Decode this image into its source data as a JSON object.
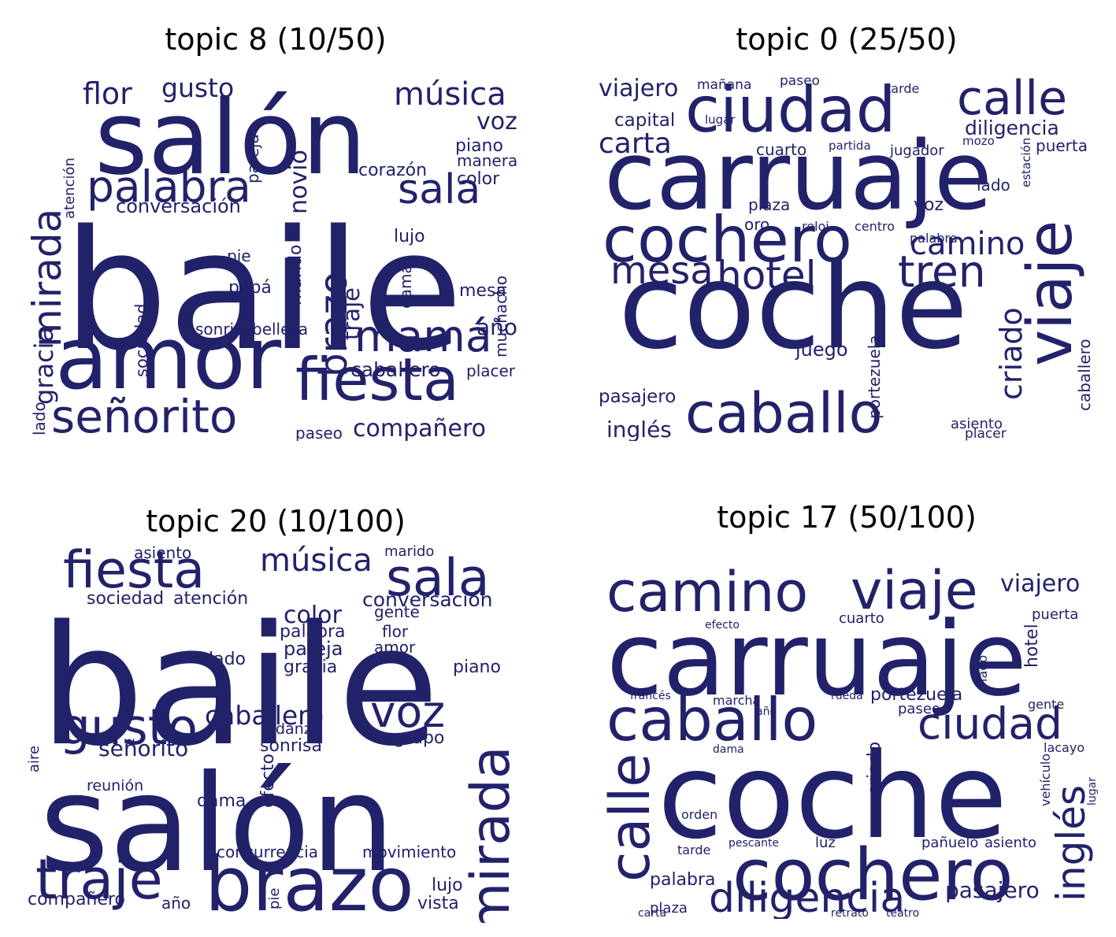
{
  "word_color": "#22226b",
  "chart_data": [
    {
      "type": "wordcloud",
      "title": "topic 8 (10/50)",
      "words": [
        {
          "text": "baile",
          "weight": 1.0
        },
        {
          "text": "salón",
          "weight": 0.85
        },
        {
          "text": "amor",
          "weight": 0.7
        },
        {
          "text": "fiesta",
          "weight": 0.47
        },
        {
          "text": "señorito",
          "weight": 0.38
        },
        {
          "text": "mamá",
          "weight": 0.36
        },
        {
          "text": "palabra",
          "weight": 0.35
        },
        {
          "text": "sala",
          "weight": 0.34
        },
        {
          "text": "mirada",
          "weight": 0.33
        },
        {
          "text": "música",
          "weight": 0.3
        },
        {
          "text": "flor",
          "weight": 0.26
        },
        {
          "text": "gusto",
          "weight": 0.23
        },
        {
          "text": "compañero",
          "weight": 0.22
        },
        {
          "text": "brazo",
          "weight": 0.22
        },
        {
          "text": "voz",
          "weight": 0.2
        },
        {
          "text": "gracia",
          "weight": 0.19
        },
        {
          "text": "novio",
          "weight": 0.19
        },
        {
          "text": "año",
          "weight": 0.18
        },
        {
          "text": "traje",
          "weight": 0.18
        },
        {
          "text": "caballero",
          "weight": 0.15
        },
        {
          "text": "conversación",
          "weight": 0.15
        },
        {
          "text": "corazón",
          "weight": 0.14
        },
        {
          "text": "sonrisa",
          "weight": 0.14
        },
        {
          "text": "belleza",
          "weight": 0.14
        },
        {
          "text": "piano",
          "weight": 0.14
        },
        {
          "text": "manera",
          "weight": 0.13
        },
        {
          "text": "color",
          "weight": 0.13
        },
        {
          "text": "lujo",
          "weight": 0.13
        },
        {
          "text": "pie",
          "weight": 0.13
        },
        {
          "text": "papá",
          "weight": 0.13
        },
        {
          "text": "mesa",
          "weight": 0.13
        },
        {
          "text": "placer",
          "weight": 0.13
        },
        {
          "text": "marido",
          "weight": 0.13
        },
        {
          "text": "sociedad",
          "weight": 0.12
        },
        {
          "text": "muchacho",
          "weight": 0.12
        },
        {
          "text": "paseo",
          "weight": 0.12
        },
        {
          "text": "pareja",
          "weight": 0.12
        },
        {
          "text": "dama",
          "weight": 0.12
        },
        {
          "text": "atención",
          "weight": 0.11
        },
        {
          "text": "lado",
          "weight": 0.11
        }
      ]
    },
    {
      "type": "wordcloud",
      "title": "topic 0 (25/50)",
      "words": [
        {
          "text": "coche",
          "weight": 1.0
        },
        {
          "text": "carruaje",
          "weight": 0.85
        },
        {
          "text": "ciudad",
          "weight": 0.6
        },
        {
          "text": "cochero",
          "weight": 0.58
        },
        {
          "text": "caballo",
          "weight": 0.58
        },
        {
          "text": "viaje",
          "weight": 0.55
        },
        {
          "text": "calle",
          "weight": 0.45
        },
        {
          "text": "tren",
          "weight": 0.4
        },
        {
          "text": "hotel",
          "weight": 0.37
        },
        {
          "text": "mesa",
          "weight": 0.35
        },
        {
          "text": "camino",
          "weight": 0.3
        },
        {
          "text": "carta",
          "weight": 0.28
        },
        {
          "text": "criado",
          "weight": 0.24
        },
        {
          "text": "viajero",
          "weight": 0.22
        },
        {
          "text": "diligencia",
          "weight": 0.19
        },
        {
          "text": "inglés",
          "weight": 0.19
        },
        {
          "text": "juego",
          "weight": 0.18
        },
        {
          "text": "capital",
          "weight": 0.17
        },
        {
          "text": "pasajero",
          "weight": 0.16
        },
        {
          "text": "cuarto",
          "weight": 0.15
        },
        {
          "text": "voz",
          "weight": 0.15
        },
        {
          "text": "portezuela",
          "weight": 0.14
        },
        {
          "text": "caballero",
          "weight": 0.14
        },
        {
          "text": "plaza",
          "weight": 0.14
        },
        {
          "text": "lado",
          "weight": 0.14
        },
        {
          "text": "oro",
          "weight": 0.14
        },
        {
          "text": "puerta",
          "weight": 0.13
        },
        {
          "text": "asiento",
          "weight": 0.13
        },
        {
          "text": "placer",
          "weight": 0.13
        },
        {
          "text": "jugador",
          "weight": 0.13
        },
        {
          "text": "paseo",
          "weight": 0.13
        },
        {
          "text": "mañana",
          "weight": 0.12
        },
        {
          "text": "tarde",
          "weight": 0.12
        },
        {
          "text": "palabra",
          "weight": 0.12
        },
        {
          "text": "reloj",
          "weight": 0.12
        },
        {
          "text": "centro",
          "weight": 0.12
        },
        {
          "text": "lugar",
          "weight": 0.11
        },
        {
          "text": "partida",
          "weight": 0.11
        },
        {
          "text": "mozo",
          "weight": 0.11
        },
        {
          "text": "estación",
          "weight": 0.11
        }
      ]
    },
    {
      "type": "wordcloud",
      "title": "topic 20 (10/100)",
      "words": [
        {
          "text": "baile",
          "weight": 1.0
        },
        {
          "text": "salón",
          "weight": 0.9
        },
        {
          "text": "brazo",
          "weight": 0.58
        },
        {
          "text": "traje",
          "weight": 0.45
        },
        {
          "text": "fiesta",
          "weight": 0.44
        },
        {
          "text": "sala",
          "weight": 0.44
        },
        {
          "text": "mirada",
          "weight": 0.43
        },
        {
          "text": "gusto",
          "weight": 0.4
        },
        {
          "text": "voz",
          "weight": 0.37
        },
        {
          "text": "música",
          "weight": 0.3
        },
        {
          "text": "caballero",
          "weight": 0.26
        },
        {
          "text": "señorito",
          "weight": 0.22
        },
        {
          "text": "color",
          "weight": 0.21
        },
        {
          "text": "conversación",
          "weight": 0.19
        },
        {
          "text": "pareja",
          "weight": 0.18
        },
        {
          "text": "sociedad",
          "weight": 0.17
        },
        {
          "text": "atención",
          "weight": 0.17
        },
        {
          "text": "palabra",
          "weight": 0.17
        },
        {
          "text": "gracia",
          "weight": 0.17
        },
        {
          "text": "piano",
          "weight": 0.17
        },
        {
          "text": "lado",
          "weight": 0.17
        },
        {
          "text": "amor",
          "weight": 0.16
        },
        {
          "text": "flor",
          "weight": 0.16
        },
        {
          "text": "gente",
          "weight": 0.16
        },
        {
          "text": "grupo",
          "weight": 0.16
        },
        {
          "text": "sonrisa",
          "weight": 0.15
        },
        {
          "text": "dama",
          "weight": 0.16
        },
        {
          "text": "reunión",
          "weight": 0.15
        },
        {
          "text": "danza",
          "weight": 0.14
        },
        {
          "text": "efecto",
          "weight": 0.14
        },
        {
          "text": "concurrencia",
          "weight": 0.14
        },
        {
          "text": "movimiento",
          "weight": 0.14
        },
        {
          "text": "compañero",
          "weight": 0.15
        },
        {
          "text": "lujo",
          "weight": 0.15
        },
        {
          "text": "vista",
          "weight": 0.15
        },
        {
          "text": "año",
          "weight": 0.14
        },
        {
          "text": "asiento",
          "weight": 0.13
        },
        {
          "text": "marido",
          "weight": 0.13
        },
        {
          "text": "aire",
          "weight": 0.12
        },
        {
          "text": "pie",
          "weight": 0.12
        }
      ]
    },
    {
      "type": "wordcloud",
      "title": "topic 17 (50/100)",
      "words": [
        {
          "text": "coche",
          "weight": 1.0
        },
        {
          "text": "carruaje",
          "weight": 0.85
        },
        {
          "text": "cochero",
          "weight": 0.6
        },
        {
          "text": "caballo",
          "weight": 0.55
        },
        {
          "text": "calle",
          "weight": 0.52
        },
        {
          "text": "camino",
          "weight": 0.5
        },
        {
          "text": "viaje",
          "weight": 0.49
        },
        {
          "text": "ciudad",
          "weight": 0.47
        },
        {
          "text": "diligencia",
          "weight": 0.4
        },
        {
          "text": "inglés",
          "weight": 0.35
        },
        {
          "text": "viajero",
          "weight": 0.24
        },
        {
          "text": "pasajero",
          "weight": 0.23
        },
        {
          "text": "portezuela",
          "weight": 0.2
        },
        {
          "text": "criado",
          "weight": 0.19
        },
        {
          "text": "hotel",
          "weight": 0.18
        },
        {
          "text": "palabra",
          "weight": 0.18
        },
        {
          "text": "puerta",
          "weight": 0.16
        },
        {
          "text": "cuarto",
          "weight": 0.16
        },
        {
          "text": "paseo",
          "weight": 0.16
        },
        {
          "text": "pañuelo",
          "weight": 0.15
        },
        {
          "text": "asiento",
          "weight": 0.15
        },
        {
          "text": "plaza",
          "weight": 0.14
        },
        {
          "text": "luz",
          "weight": 0.14
        },
        {
          "text": "marcha",
          "weight": 0.14
        },
        {
          "text": "tarde",
          "weight": 0.14
        },
        {
          "text": "lado",
          "weight": 0.14
        },
        {
          "text": "vehículo",
          "weight": 0.13
        },
        {
          "text": "gente",
          "weight": 0.13
        },
        {
          "text": "lacayo",
          "weight": 0.13
        },
        {
          "text": "orden",
          "weight": 0.13
        },
        {
          "text": "pescante",
          "weight": 0.12
        },
        {
          "text": "retrato",
          "weight": 0.12
        },
        {
          "text": "teatro",
          "weight": 0.12
        },
        {
          "text": "francés",
          "weight": 0.12
        },
        {
          "text": "efecto",
          "weight": 0.12
        },
        {
          "text": "rueda",
          "weight": 0.12
        },
        {
          "text": "año",
          "weight": 0.12
        },
        {
          "text": "dama",
          "weight": 0.11
        },
        {
          "text": "carta",
          "weight": 0.11
        },
        {
          "text": "lugar",
          "weight": 0.11
        }
      ]
    }
  ]
}
